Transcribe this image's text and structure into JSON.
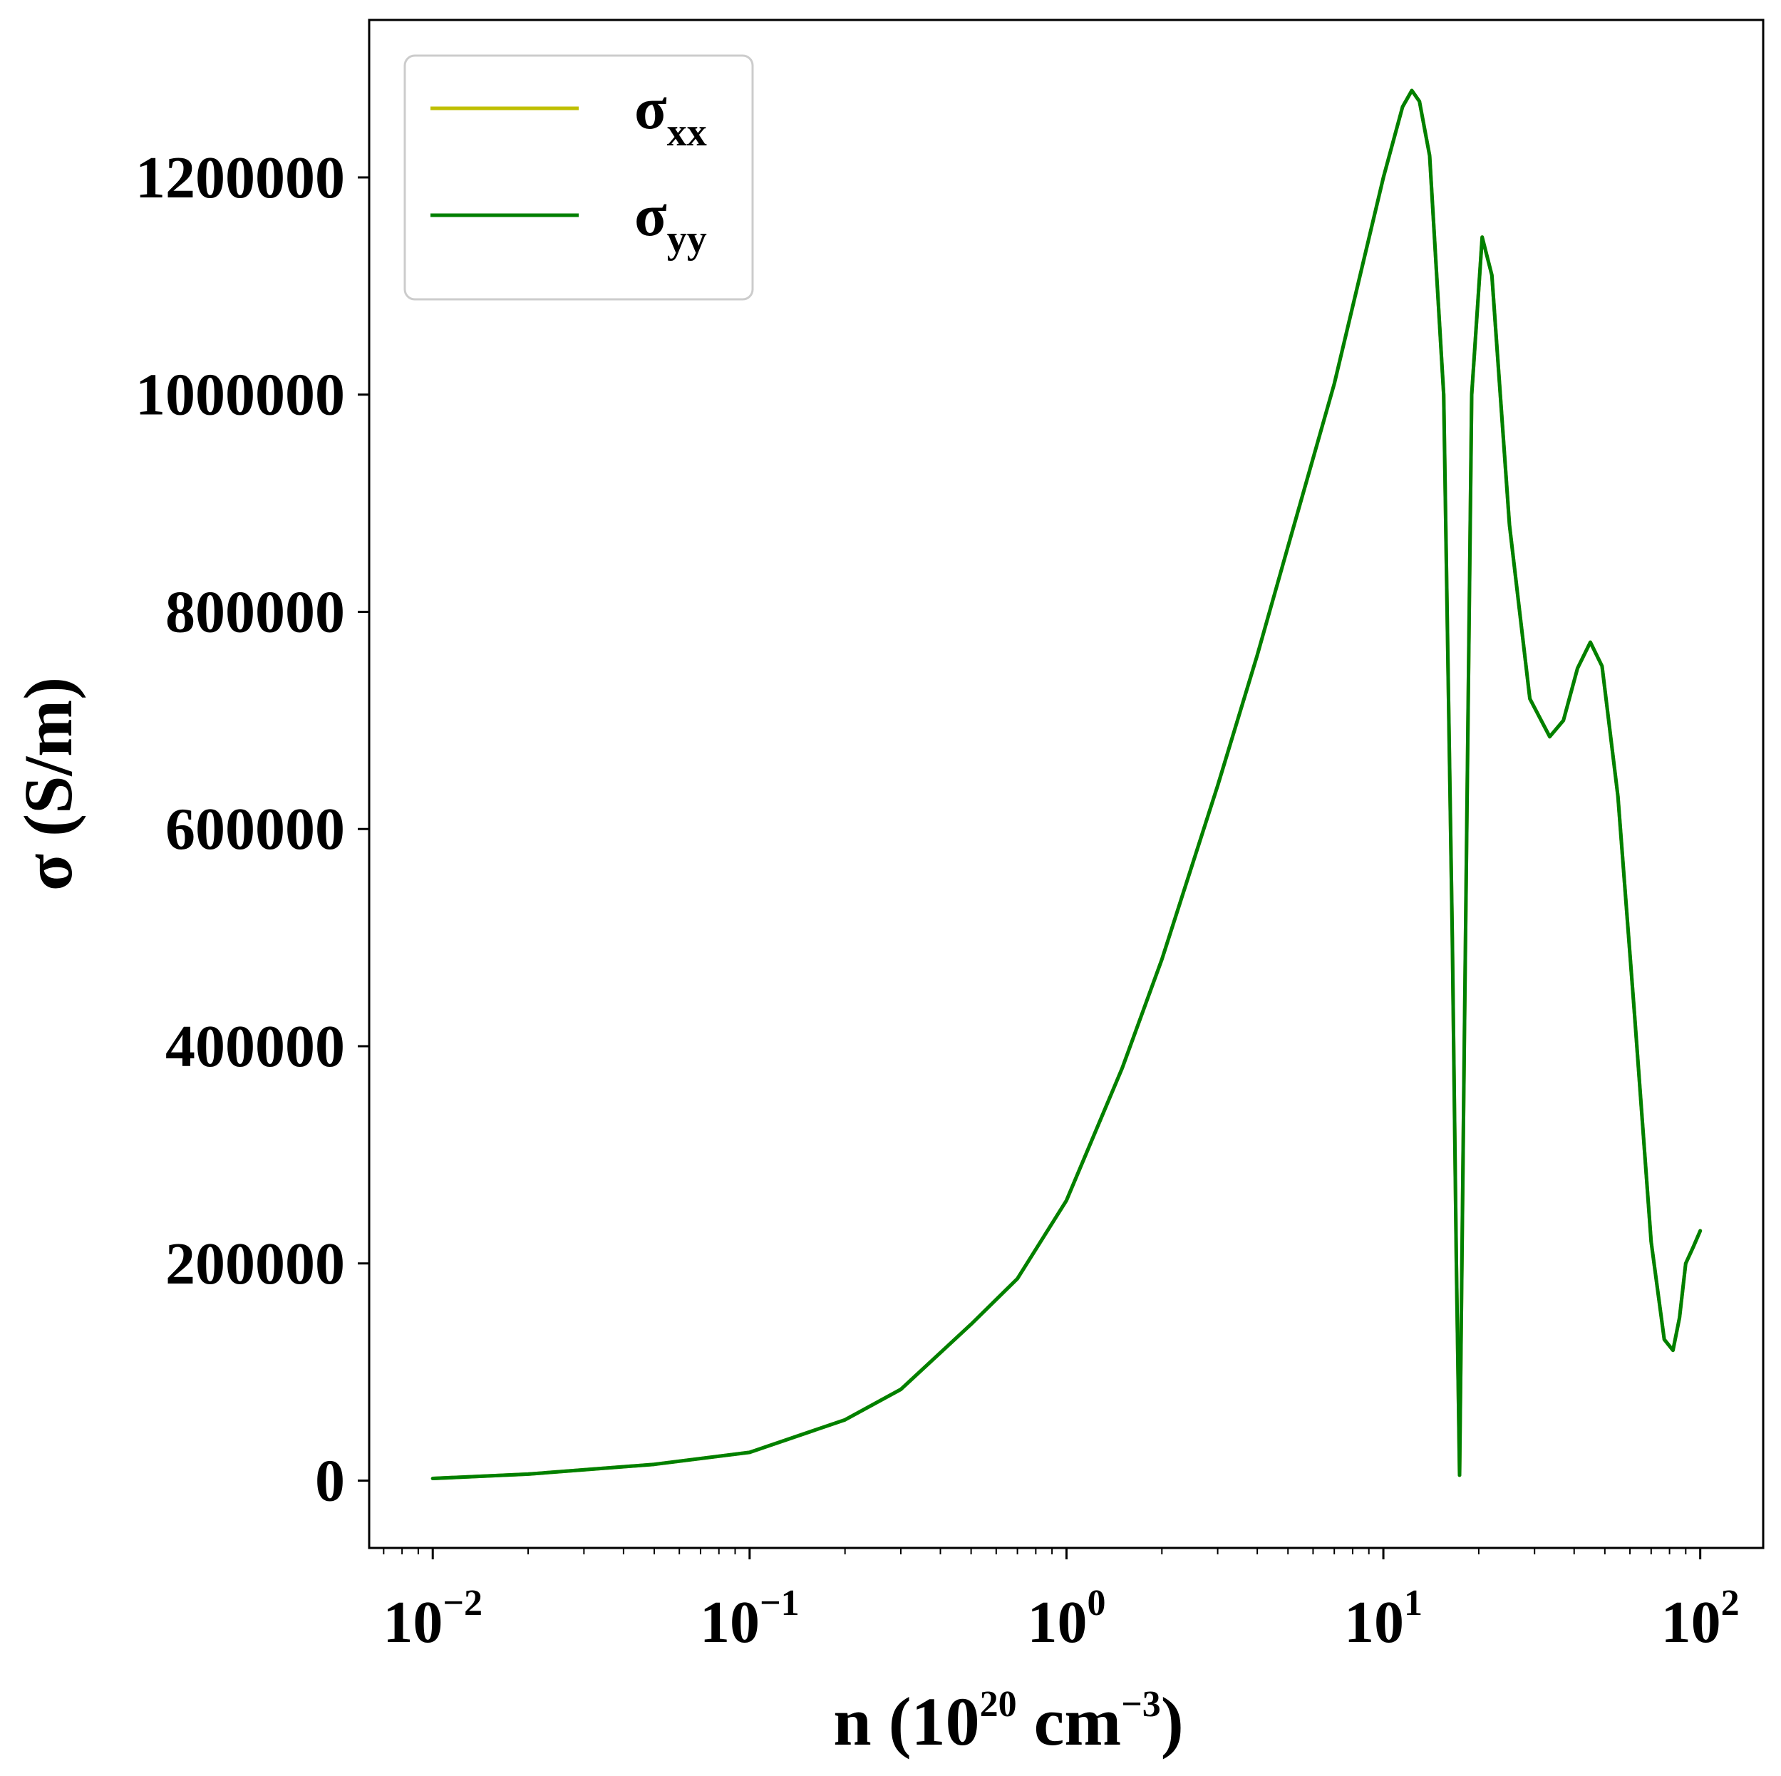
{
  "chart_data": {
    "type": "line",
    "xscale": "log",
    "xlim": [
      0.0063,
      158
    ],
    "ylim": [
      -62000,
      1345000
    ],
    "xlabel": {
      "main": "n (10",
      "sup1": "20",
      "mid": " cm",
      "sup2": "−3",
      "close": ")"
    },
    "ylabel": "σ (S/m)",
    "grid": false,
    "legend_position": "top-left",
    "x_ticks": [
      {
        "value": 0.01,
        "base": "10",
        "exp": "−2"
      },
      {
        "value": 0.1,
        "base": "10",
        "exp": "−1"
      },
      {
        "value": 1,
        "base": "10",
        "exp": "0"
      },
      {
        "value": 10,
        "base": "10",
        "exp": "1"
      },
      {
        "value": 100,
        "base": "10",
        "exp": "2"
      }
    ],
    "y_ticks": [
      {
        "value": 0,
        "label": "0"
      },
      {
        "value": 200000,
        "label": "200000"
      },
      {
        "value": 400000,
        "label": "400000"
      },
      {
        "value": 600000,
        "label": "600000"
      },
      {
        "value": 800000,
        "label": "800000"
      },
      {
        "value": 1000000,
        "label": "1000000"
      },
      {
        "value": 1200000,
        "label": "1200000"
      }
    ],
    "series": [
      {
        "name": "σxx",
        "legend_base": "σ",
        "legend_sub": "xx",
        "color": "#bfbf00",
        "x": [
          0.01,
          0.02,
          0.05,
          0.1,
          0.2,
          0.3,
          0.5,
          0.7,
          1.0,
          1.5,
          2.0,
          3.0,
          4.0,
          5.0,
          7.0,
          10.0,
          11.5,
          12.3,
          13.0,
          14.0,
          15.5,
          16.5,
          17.0,
          17.4,
          18.0,
          19.0,
          20.5,
          22.0,
          25.0,
          29.0,
          33.5,
          37.0,
          41.0,
          45.0,
          49.0,
          55.0,
          62.0,
          70.0,
          77.0,
          82.0,
          86.0,
          90.0,
          95.0,
          100.0
        ],
        "y": [
          2000,
          6000,
          15000,
          26000,
          56000,
          84000,
          144000,
          186000,
          258000,
          380000,
          480000,
          640000,
          760000,
          860000,
          1010000,
          1200000,
          1265000,
          1280000,
          1270000,
          1220000,
          1000000,
          500000,
          200000,
          5000,
          400000,
          1000000,
          1145000,
          1110000,
          880000,
          720000,
          685000,
          700000,
          748000,
          772000,
          750000,
          630000,
          430000,
          220000,
          130000,
          120000,
          150000,
          200000,
          215000,
          230000
        ]
      },
      {
        "name": "σyy",
        "legend_base": "σ",
        "legend_sub": "yy",
        "color": "#008000",
        "x": [
          0.01,
          0.02,
          0.05,
          0.1,
          0.2,
          0.3,
          0.5,
          0.7,
          1.0,
          1.5,
          2.0,
          3.0,
          4.0,
          5.0,
          7.0,
          10.0,
          11.5,
          12.3,
          13.0,
          14.0,
          15.5,
          16.5,
          17.0,
          17.4,
          18.0,
          19.0,
          20.5,
          22.0,
          25.0,
          29.0,
          33.5,
          37.0,
          41.0,
          45.0,
          49.0,
          55.0,
          62.0,
          70.0,
          77.0,
          82.0,
          86.0,
          90.0,
          95.0,
          100.0
        ],
        "y": [
          2000,
          6000,
          15000,
          26000,
          56000,
          84000,
          144000,
          186000,
          258000,
          380000,
          480000,
          640000,
          760000,
          860000,
          1010000,
          1200000,
          1265000,
          1280000,
          1270000,
          1220000,
          1000000,
          500000,
          200000,
          5000,
          400000,
          1000000,
          1145000,
          1110000,
          880000,
          720000,
          685000,
          700000,
          748000,
          772000,
          750000,
          630000,
          430000,
          220000,
          130000,
          120000,
          150000,
          200000,
          215000,
          230000
        ]
      }
    ]
  }
}
